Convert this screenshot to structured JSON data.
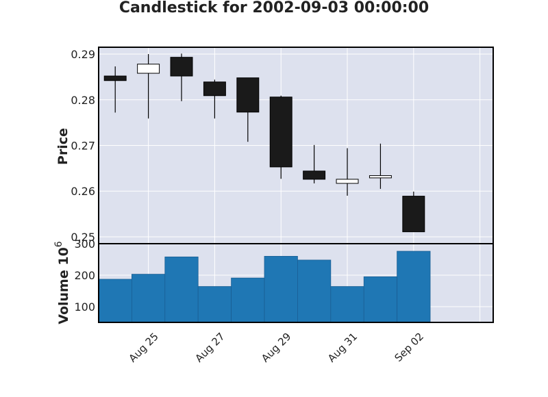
{
  "chart_data": [
    {
      "type": "candlestick",
      "title": "Candlestick for 2002-09-03 00:00:00",
      "ylabel": "Price",
      "ylim": [
        0.2485,
        0.2915
      ],
      "yticks": [
        0.25,
        0.26,
        0.27,
        0.28,
        0.29
      ],
      "ytick_labels": [
        "0.25",
        "0.26",
        "0.27",
        "0.28",
        "0.29"
      ],
      "xticks": [
        "Aug 25",
        "Aug 27",
        "Aug 29",
        "Aug 31",
        "Sep 02"
      ],
      "xtick_days": [
        1,
        3,
        5,
        7,
        9
      ],
      "xlim": [
        -0.5,
        11.4
      ],
      "grid": true,
      "candles": [
        {
          "date": "2002-08-25",
          "open": 0.2852,
          "high": 0.2873,
          "low": 0.2772,
          "close": 0.2842
        },
        {
          "date": "2002-08-26",
          "open": 0.2858,
          "high": 0.29,
          "low": 0.2759,
          "close": 0.2878
        },
        {
          "date": "2002-08-27",
          "open": 0.2893,
          "high": 0.2901,
          "low": 0.2797,
          "close": 0.2852
        },
        {
          "date": "2002-08-28",
          "open": 0.2839,
          "high": 0.2844,
          "low": 0.2759,
          "close": 0.2809
        },
        {
          "date": "2002-08-29",
          "open": 0.2848,
          "high": 0.2848,
          "low": 0.2708,
          "close": 0.2773
        },
        {
          "date": "2002-08-30",
          "open": 0.2806,
          "high": 0.2809,
          "low": 0.2627,
          "close": 0.2653
        },
        {
          "date": "2002-08-31",
          "open": 0.2644,
          "high": 0.2701,
          "low": 0.2617,
          "close": 0.2626
        },
        {
          "date": "2002-09-01",
          "open": 0.2617,
          "high": 0.2694,
          "low": 0.259,
          "close": 0.2626
        },
        {
          "date": "2002-09-02",
          "open": 0.2629,
          "high": 0.2704,
          "low": 0.2605,
          "close": 0.2634
        },
        {
          "date": "2002-09-03",
          "open": 0.2589,
          "high": 0.2599,
          "low": 0.2511,
          "close": 0.2511
        }
      ],
      "colors": {
        "up": "#ffffff",
        "down": "#1a1a1a",
        "edge": "#000000",
        "bg": "#dde1ee",
        "grid": "#ffffff"
      }
    },
    {
      "type": "bar",
      "ylabel": "Volume  10",
      "ylabel_exponent": "6",
      "ylim": [
        50,
        300
      ],
      "yticks": [
        100,
        200,
        300
      ],
      "ytick_labels": [
        "100",
        "200",
        "300"
      ],
      "dates": [
        "2002-08-25",
        "2002-08-26",
        "2002-08-27",
        "2002-08-28",
        "2002-08-29",
        "2002-08-30",
        "2002-08-31",
        "2002-09-01",
        "2002-09-02",
        "2002-09-03"
      ],
      "values": [
        187,
        203,
        258,
        164,
        191,
        260,
        248,
        164,
        195,
        276
      ],
      "colors": {
        "bar": "#1f77b4",
        "edge": "#1a5f94"
      }
    }
  ]
}
